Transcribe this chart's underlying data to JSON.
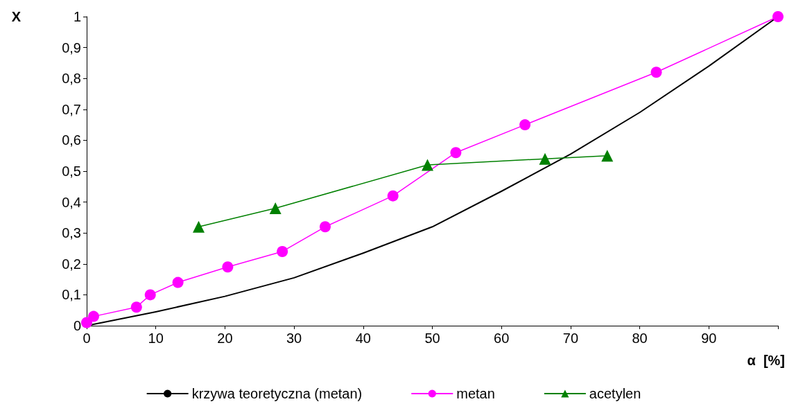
{
  "chart_data": {
    "type": "line",
    "xlabel": "α  [%]",
    "ylabel": "X",
    "xlim": [
      0,
      100
    ],
    "xticks": [
      0,
      10,
      20,
      30,
      40,
      50,
      60,
      70,
      80,
      90,
      {
        "value": 100,
        "label": null
      }
    ],
    "ylim": [
      0,
      1
    ],
    "yticks": [
      0,
      {
        "value": 0.1,
        "label": "0,1"
      },
      {
        "value": 0.2,
        "label": "0,2"
      },
      {
        "value": 0.3,
        "label": "0,3"
      },
      {
        "value": 0.4,
        "label": "0,4"
      },
      {
        "value": 0.5,
        "label": "0,5"
      },
      {
        "value": 0.6,
        "label": "0,6"
      },
      {
        "value": 0.7,
        "label": "0,7"
      },
      {
        "value": 0.8,
        "label": "0,8"
      },
      {
        "value": 0.9,
        "label": "0,9"
      },
      1
    ],
    "grid": false,
    "legend": "bottom",
    "series": [
      {
        "name": "krzywa teoretyczna (metan)",
        "color": "#000000",
        "marker": "none",
        "x": [
          0,
          10,
          20,
          30,
          40,
          50,
          60,
          70,
          80,
          90,
          100
        ],
        "values": [
          0,
          0.045,
          0.095,
          0.155,
          0.235,
          0.32,
          0.435,
          0.555,
          0.69,
          0.84,
          1
        ]
      },
      {
        "name": "metan",
        "color": "#ff00ff",
        "marker": "circle",
        "x": [
          0,
          1,
          7.2,
          9.2,
          13.2,
          20.4,
          28.3,
          34.5,
          44.3,
          53.4,
          63.4,
          82.4,
          100
        ],
        "values": [
          0.01,
          0.03,
          0.06,
          0.1,
          0.14,
          0.19,
          0.24,
          0.32,
          0.42,
          0.56,
          0.65,
          0.82,
          1
        ]
      },
      {
        "name": "acetylen",
        "color": "#008000",
        "marker": "triangle",
        "x": [
          16.2,
          27.3,
          49.3,
          66.3,
          75.3
        ],
        "values": [
          0.32,
          0.38,
          0.52,
          0.54,
          0.55
        ]
      }
    ]
  }
}
